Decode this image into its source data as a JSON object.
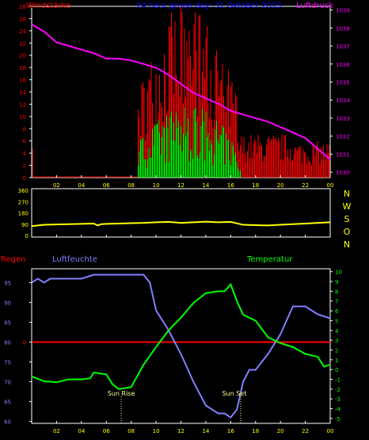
{
  "colors": {
    "bg": "#000000",
    "frame": "#ffffff",
    "wind_avg": "#00ff00",
    "wind_gust": "#ff0000",
    "pressure": "#ff00ff",
    "direction": "#ffff00",
    "humidity": "#8080ff",
    "temperature": "#00ff00",
    "rain": "#ff0000",
    "tick_x": "#ffff00",
    "title": "#0000ff",
    "compass": "#ffff00",
    "sun": "#ffff99"
  },
  "header": {
    "left": "Windstärke",
    "center": "24 hour graph day: 31 Oktober 2019",
    "right": "Luftdruck"
  },
  "x_ticks": [
    "02",
    "04",
    "06",
    "08",
    "10",
    "12",
    "14",
    "16",
    "18",
    "20",
    "22",
    "00"
  ],
  "chart_data": [
    {
      "type": "bar",
      "name": "wind",
      "left_axis": {
        "title": "Windstärke",
        "ticks": [
          "0",
          "2",
          "4",
          "6",
          "8",
          "10",
          "12",
          "14",
          "16",
          "18",
          "20",
          "22",
          "24",
          "26",
          "28"
        ],
        "ylim": [
          0,
          28
        ]
      },
      "right_axis": {
        "title": "Luftdruck",
        "ticks": [
          "1030",
          "1031",
          "1032",
          "1033",
          "1034",
          "1035",
          "1036",
          "1037",
          "1038",
          "1039"
        ],
        "ylim": [
          1029.7,
          1039.2
        ]
      },
      "pressure": {
        "x": [
          0,
          1,
          2,
          3,
          4,
          5,
          6,
          7,
          8,
          9,
          10,
          11,
          12,
          13,
          14,
          15,
          16,
          17,
          18,
          19,
          20,
          21,
          22,
          23,
          24
        ],
        "y": [
          1038.2,
          1037.8,
          1037.2,
          1037.0,
          1036.8,
          1036.6,
          1036.3,
          1036.3,
          1036.2,
          1036.0,
          1035.8,
          1035.4,
          1034.9,
          1034.4,
          1034.1,
          1033.8,
          1033.4,
          1033.2,
          1033.0,
          1032.8,
          1032.5,
          1032.2,
          1031.9,
          1031.3,
          1030.7
        ]
      }
    },
    {
      "type": "line",
      "name": "wind-direction",
      "right_axis": {
        "ticks": [
          "N",
          "W",
          "S",
          "O",
          "N"
        ]
      },
      "left_axis": {
        "ticks": [
          "0",
          "90",
          "180",
          "270",
          "360"
        ],
        "ylim": [
          0,
          360
        ]
      },
      "direction": {
        "x": [
          0,
          0.5,
          1,
          2,
          3,
          4,
          5,
          5.3,
          5.6,
          6,
          7,
          8,
          9,
          10,
          11,
          12,
          13,
          14,
          15,
          16,
          17,
          18,
          19,
          20,
          21,
          22,
          23,
          24
        ],
        "y": [
          75,
          80,
          85,
          88,
          90,
          92,
          95,
          80,
          90,
          92,
          95,
          98,
          100,
          105,
          108,
          100,
          105,
          110,
          105,
          108,
          85,
          82,
          80,
          85,
          90,
          95,
          100,
          105
        ]
      }
    },
    {
      "type": "line",
      "name": "humidity-temperature",
      "labels": {
        "rain": "Regen",
        "humidity": "Luftfeuchte",
        "temperature": "Temperatur",
        "sunrise": "Sun Rise",
        "sunset": "Sun Set",
        "rain_zero": "0"
      },
      "left_axis": {
        "ticks": [
          "60",
          "65",
          "70",
          "75",
          "80",
          "85",
          "90",
          "95"
        ],
        "ylim": [
          59.5,
          98.5
        ]
      },
      "right_axis": {
        "ticks": [
          "-5",
          "-4",
          "-3",
          "-2",
          "-1",
          "0",
          "1",
          "2",
          "3",
          "4",
          "5",
          "6",
          "7",
          "8",
          "9",
          "10"
        ],
        "ylim": [
          -5.5,
          10.3
        ]
      },
      "rain_value": 0,
      "sunrise_hour": 7.2,
      "sunset_hour": 16.8,
      "humidity": {
        "x": [
          0,
          0.5,
          1,
          1.5,
          2,
          3,
          4,
          5,
          6,
          7,
          8,
          9,
          9.5,
          10,
          11,
          12,
          13,
          14,
          15,
          15.5,
          16,
          16.5,
          17,
          17.5,
          18,
          19,
          20,
          21,
          22,
          23,
          24
        ],
        "y": [
          95,
          96,
          95,
          96,
          96,
          96,
          96,
          97,
          97,
          97,
          97,
          97,
          95,
          88,
          83,
          77,
          70,
          64,
          62,
          62,
          61,
          63,
          70,
          73,
          73,
          77,
          82,
          89,
          89,
          87,
          86
        ]
      },
      "temperature": {
        "x": [
          0,
          1,
          2,
          3,
          4,
          4.7,
          5,
          6,
          6.5,
          7,
          8,
          9,
          10,
          11,
          12,
          13,
          14,
          15,
          15.5,
          16,
          16.5,
          17,
          18,
          19,
          20,
          21,
          22,
          23,
          23.5,
          24
        ],
        "y": [
          -0.7,
          -1.2,
          -1.3,
          -1.0,
          -1.0,
          -0.9,
          -0.3,
          -0.5,
          -1.5,
          -2.0,
          -1.8,
          0.5,
          2.3,
          4.0,
          5.3,
          6.8,
          7.8,
          8.0,
          8.0,
          8.7,
          7.0,
          5.6,
          5.0,
          3.3,
          2.7,
          2.3,
          1.6,
          1.3,
          0.3,
          0.5
        ]
      }
    }
  ]
}
